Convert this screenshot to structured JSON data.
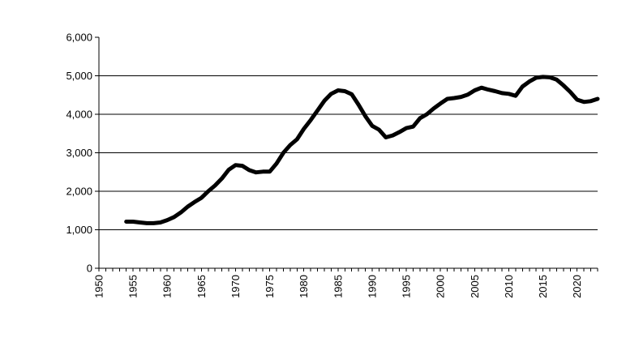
{
  "chart_data": {
    "type": "line",
    "title": "",
    "xlabel": "",
    "ylabel": "",
    "xlim": [
      1950,
      2023
    ],
    "ylim": [
      0,
      6000
    ],
    "grid": "horizontal",
    "legend": "none",
    "colors": {
      "line": "#000000",
      "grid": "#000000",
      "axis": "#000000"
    },
    "y_ticks": [
      {
        "value": 0,
        "label": "0"
      },
      {
        "value": 1000,
        "label": "1,000"
      },
      {
        "value": 2000,
        "label": "2,000"
      },
      {
        "value": 3000,
        "label": "3,000"
      },
      {
        "value": 4000,
        "label": "4,000"
      },
      {
        "value": 5000,
        "label": "5,000"
      },
      {
        "value": 6000,
        "label": "6,000"
      }
    ],
    "x_tick_labels": [
      {
        "value": 1950,
        "label": "1950"
      },
      {
        "value": 1955,
        "label": "1955"
      },
      {
        "value": 1960,
        "label": "1960"
      },
      {
        "value": 1965,
        "label": "1965"
      },
      {
        "value": 1970,
        "label": "1970"
      },
      {
        "value": 1975,
        "label": "1975"
      },
      {
        "value": 1980,
        "label": "1980"
      },
      {
        "value": 1985,
        "label": "1985"
      },
      {
        "value": 1990,
        "label": "1990"
      },
      {
        "value": 1995,
        "label": "1995"
      },
      {
        "value": 2000,
        "label": "2000"
      },
      {
        "value": 2005,
        "label": "2005"
      },
      {
        "value": 2010,
        "label": "2010"
      },
      {
        "value": 2015,
        "label": "2015"
      },
      {
        "value": 2020,
        "label": "2020"
      }
    ],
    "series": [
      {
        "x": [
          1954,
          1955,
          1956,
          1957,
          1958,
          1959,
          1960,
          1961,
          1962,
          1963,
          1964,
          1965,
          1966,
          1967,
          1968,
          1969,
          1970,
          1971,
          1972,
          1973,
          1974,
          1975,
          1976,
          1977,
          1978,
          1979,
          1980,
          1981,
          1982,
          1983,
          1984,
          1985,
          1986,
          1987,
          1988,
          1989,
          1990,
          1991,
          1992,
          1993,
          1994,
          1995,
          1996,
          1997,
          1998,
          1999,
          2000,
          2001,
          2002,
          2003,
          2004,
          2005,
          2006,
          2007,
          2008,
          2009,
          2010,
          2011,
          2012,
          2013,
          2014,
          2015,
          2016,
          2017,
          2018,
          2019,
          2020,
          2021,
          2022,
          2023
        ],
        "y": [
          1210,
          1210,
          1190,
          1170,
          1170,
          1190,
          1250,
          1330,
          1450,
          1600,
          1720,
          1830,
          2000,
          2150,
          2330,
          2560,
          2680,
          2660,
          2550,
          2490,
          2510,
          2510,
          2720,
          3000,
          3200,
          3350,
          3620,
          3850,
          4100,
          4350,
          4530,
          4620,
          4600,
          4520,
          4250,
          3950,
          3700,
          3600,
          3400,
          3450,
          3540,
          3640,
          3680,
          3900,
          4000,
          4150,
          4280,
          4400,
          4420,
          4450,
          4510,
          4620,
          4690,
          4640,
          4600,
          4550,
          4530,
          4480,
          4720,
          4850,
          4950,
          4970,
          4960,
          4900,
          4750,
          4580,
          4380,
          4320,
          4340,
          4400
        ]
      }
    ]
  }
}
